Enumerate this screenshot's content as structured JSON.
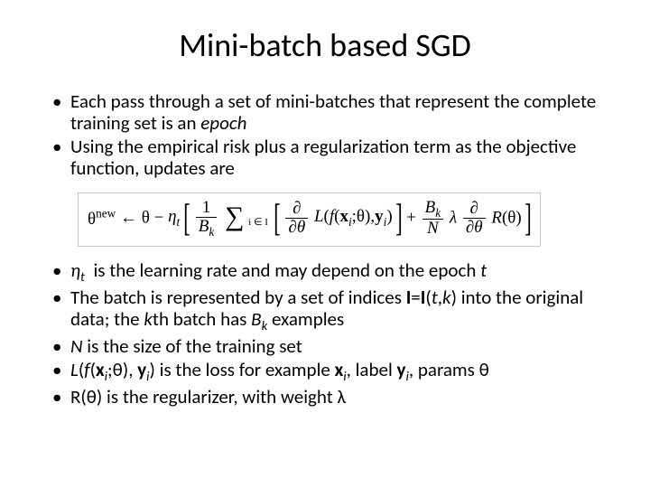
{
  "title": "Mini-batch based SGD",
  "bullets_top": [
    {
      "html": "Each pass through a set of mini-batches that represent the complete training set is an <span class='italic'>epoch</span>"
    },
    {
      "html": "Using the empirical risk plus a regularization term as the objective function, updates are"
    }
  ],
  "formula": {
    "lhs_base": "θ",
    "lhs_sup": "new",
    "arrow": "←",
    "theta": "θ",
    "minus": "−",
    "eta": "η",
    "eta_sub": "t",
    "frac1_num": "1",
    "frac1_den_B": "B",
    "frac1_den_k": "k",
    "sum_lower": "i ∈ I",
    "partial": "∂",
    "partial_den": "∂θ",
    "L": "L",
    "f": "f",
    "x": "x",
    "xi": "i",
    "semicolon_theta": ";θ",
    "comma": ",",
    "y": "y",
    "yi": "i",
    "plus": "+",
    "Bk_B": "B",
    "Bk_k": "k",
    "N": "N",
    "lambda": "λ",
    "R": "R",
    "Rarg": "(θ)"
  },
  "bullets_bottom": [
    {
      "html": "<span class='italic'>η<span class=\"sub\">t</span></span>  is the learning rate and may depend on the epoch <span class='italic'>t</span>"
    },
    {
      "html": "The batch is represented by a set of indices <span class='bold'>I</span>=<span class='bold'>I</span>(<span class='italic'>t</span>,<span class='italic'>k</span>) into the original data; the <span class='italic'>k</span>th batch has <span class='italic'>B<span class=\"sub\">k</span></span> examples"
    },
    {
      "html": "<span class='italic'>N</span> is the size of the training set"
    },
    {
      "html": "<span class='italic'>L</span>(<span class='italic'>f</span>(<span class='bold'>x</span><span class='sub'>i</span>;θ), <span class='bold'>y</span><span class='sub'>i</span>) is the loss for example <span class='bold'>x</span><span class='sub'>i</span>, label <span class='bold'>y</span><span class='sub'>i</span>, params θ"
    },
    {
      "html": "R(θ) is the regularizer, with weight λ"
    }
  ]
}
